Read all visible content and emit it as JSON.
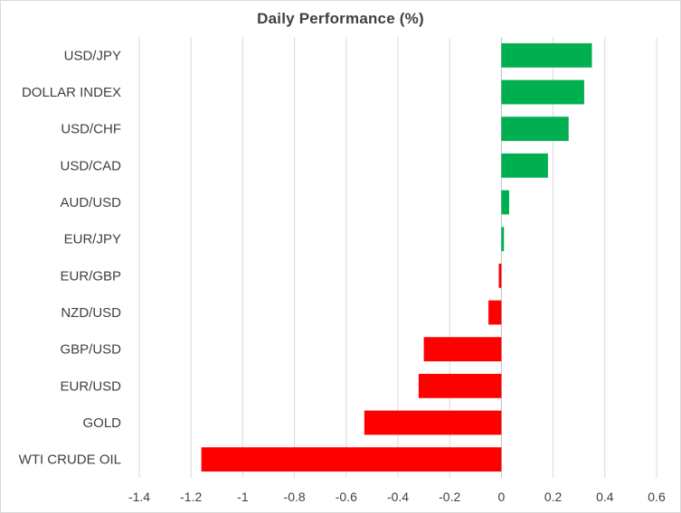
{
  "chart_data": {
    "type": "bar",
    "orientation": "horizontal",
    "title": "Daily Performance  (%)",
    "xlabel": "",
    "ylabel": "",
    "xlim": [
      -1.4,
      0.6
    ],
    "x_ticks": [
      -1.4,
      -1.2,
      -1,
      -0.8,
      -0.6,
      -0.4,
      -0.2,
      0,
      0.2,
      0.4,
      0.6
    ],
    "x_tick_labels": [
      "-1.4",
      "-1.2",
      "-1",
      "-0.8",
      "-0.6",
      "-0.4",
      "-0.2",
      "0",
      "0.2",
      "0.4",
      "0.6"
    ],
    "grid": "vertical",
    "categories": [
      "USD/JPY",
      "DOLLAR INDEX",
      "USD/CHF",
      "USD/CAD",
      "AUD/USD",
      "EUR/JPY",
      "EUR/GBP",
      "NZD/USD",
      "GBP/USD",
      "EUR/USD",
      "GOLD",
      "WTI CRUDE OIL"
    ],
    "values": [
      0.35,
      0.32,
      0.26,
      0.18,
      0.03,
      0.01,
      -0.01,
      -0.05,
      -0.3,
      -0.32,
      -0.53,
      -1.16
    ],
    "colors": {
      "positive": "#00b050",
      "negative": "#ff0000",
      "grid": "#d9d9d9",
      "text": "#404040"
    }
  }
}
